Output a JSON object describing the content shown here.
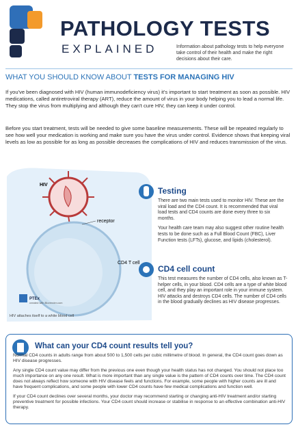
{
  "header": {
    "title": "PATHOLOGY TESTS",
    "subtitle": "EXPLAINED",
    "tagline": "Information about pathology tests to help everyone take control of their health and make the right decisions about their care."
  },
  "section_title": {
    "prefix": "WHAT YOU SHOULD KNOW ABOUT",
    "highlight": "TESTS FOR MANAGING HIV"
  },
  "intro": [
    "If you've been diagnosed with HIV (human immunodeficiency virus) it's important to start treatment as soon as possible. HIV medications, called antiretroviral therapy (ART), reduce the amount of virus in your body helping you to lead a normal life. They stop the virus from multiplying and although they can't cure HIV, they can keep it under control.",
    "Before you start treatment, tests will be needed to give some baseline measurements. These will be repeated regularly to see how well your medication is working and make sure you have the virus under control. Evidence shows that keeping viral levels as low as possible for as long as possible decreases the complications of HIV and reduces transmission of the virus."
  ],
  "illustration": {
    "labels": {
      "virus": "HIV",
      "receptor": "receptor",
      "cell": "CD4 T cell"
    },
    "credit": {
      "name": "PTEx",
      "note": "created with Biorender.com"
    },
    "caption": "HIV attaches itself to a white blood cell"
  },
  "testing": {
    "heading": "Testing",
    "paragraphs": [
      "There are two main tests used to monitor HIV. These are the viral load and the CD4 count. It is recommended that viral load tests and CD4 counts are done every three to six months.",
      "Your health care team may also suggest other routine health tests to be done such as a Full Blood Count (FBC), Liver Function tests (LFTs), glucose, and lipids (cholesterol)."
    ]
  },
  "cd4": {
    "heading": "CD4 cell count",
    "paragraphs": [
      "This test measures the number of CD4 cells, also known as T-helper cells, in your blood. CD4 cells are a type of white blood cell, and they play an important role in your immune system. HIV attacks and destroys CD4 cells. The number of CD4 cells in the blood gradually declines as HIV disease progresses."
    ]
  },
  "results": {
    "heading": "What can your CD4 count results tell you?",
    "paragraphs": [
      "Normal CD4 counts in adults range from about 500 to 1,500 cells per cubic millimetre of blood. In general, the CD4 count goes down as HIV disease progresses.",
      "Any single CD4 count value may differ from the previous one even though your health status has not changed. You should not place too much importance on any one result. What is more important than any single value is the pattern of CD4 counts over time. The CD4 count does not always reflect how someone with HIV disease feels and functions. For example, some people with higher counts are ill and have frequent complications, and some people with lower CD4 counts have few medical complications and function well.",
      "If your CD4 count declines over several months, your doctor may recommend starting or changing anti-HIV treatment and/or starting preventive treatment for possible infections. Your CD4 count should increase or stabilise in response to an effective combination anti-HIV therapy."
    ]
  }
}
